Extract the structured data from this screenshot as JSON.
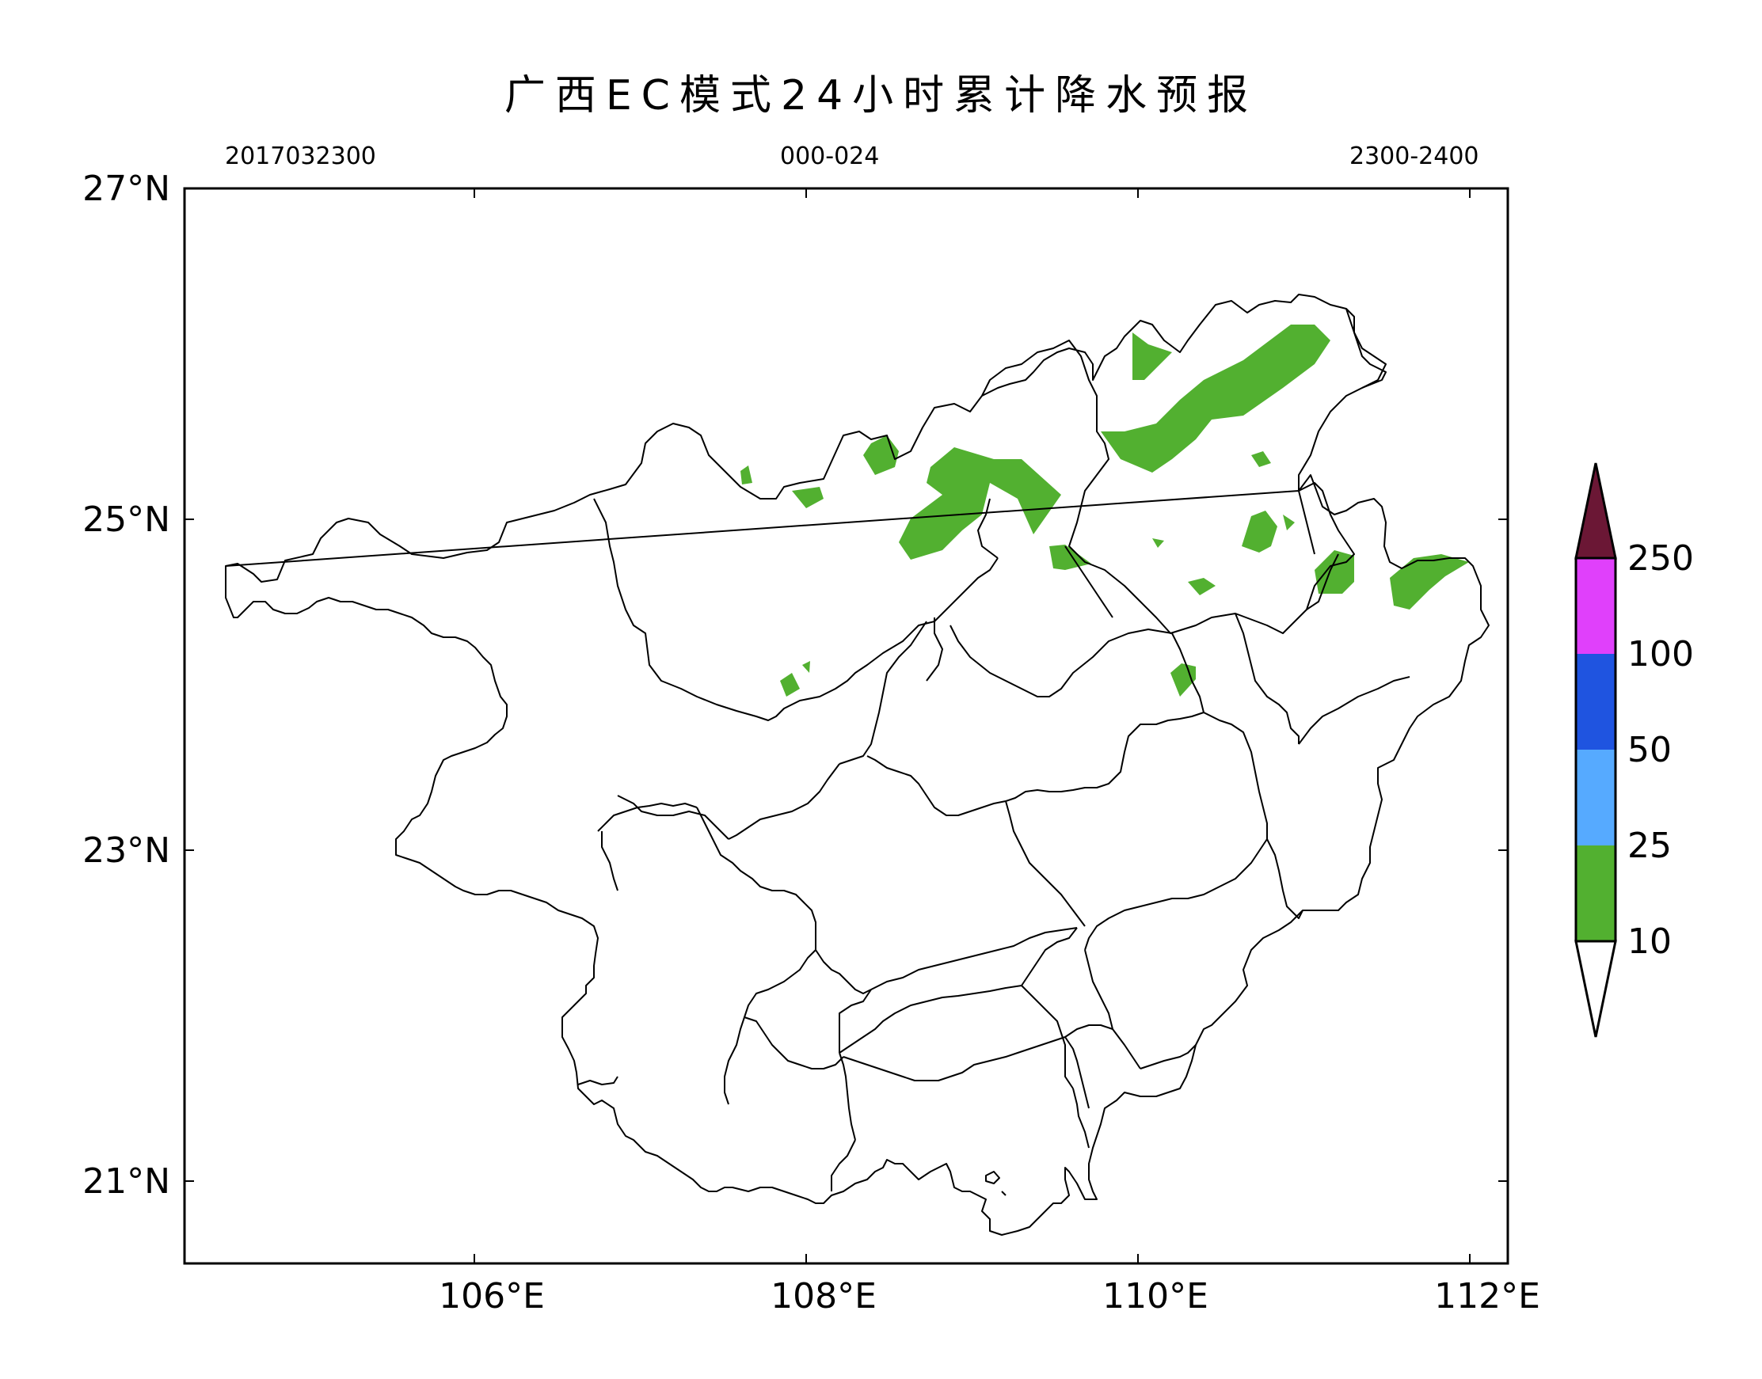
{
  "title": "广西EC模式24小时累计降水预报",
  "subtitles": {
    "left": "2017032300",
    "center": "000-024",
    "right": "2300-2400"
  },
  "axes": {
    "lat_labels": [
      "27°N",
      "25°N",
      "23°N",
      "21°N"
    ],
    "lon_labels": [
      "106°E",
      "108°E",
      "110°E",
      "112°E"
    ]
  },
  "colorbar": {
    "labels": [
      "250",
      "100",
      "50",
      "25",
      "10"
    ],
    "colors": {
      "over_250": "#6b1735",
      "100_250": "#e040fb",
      "50_100": "#1f54e0",
      "25_50": "#56aaff",
      "10_25": "#52b030",
      "under_10": "#ffffff"
    }
  }
}
